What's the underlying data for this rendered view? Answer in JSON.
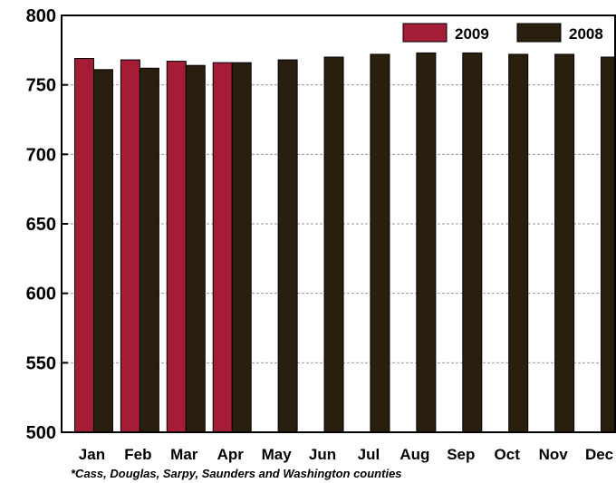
{
  "chart_data": {
    "type": "bar",
    "categories": [
      "Jan",
      "Feb",
      "Mar",
      "Apr",
      "May",
      "Jun",
      "Jul",
      "Aug",
      "Sep",
      "Oct",
      "Nov",
      "Dec"
    ],
    "series": [
      {
        "name": "2009",
        "color": "#a51c36",
        "values": [
          769,
          768,
          767,
          766,
          null,
          null,
          null,
          null,
          null,
          null,
          null,
          null
        ]
      },
      {
        "name": "2008",
        "color": "#2a1f0e",
        "values": [
          761,
          762,
          764,
          766,
          768,
          770,
          772,
          773,
          773,
          772,
          772,
          770
        ]
      }
    ],
    "ylim": [
      500,
      800
    ],
    "yticks": [
      "500",
      "550",
      "600",
      "650",
      "700",
      "750",
      "800"
    ],
    "grid": true,
    "legend_position": "top-right",
    "footnote": "*Cass, Douglas, Sarpy, Saunders and Washington counties"
  }
}
